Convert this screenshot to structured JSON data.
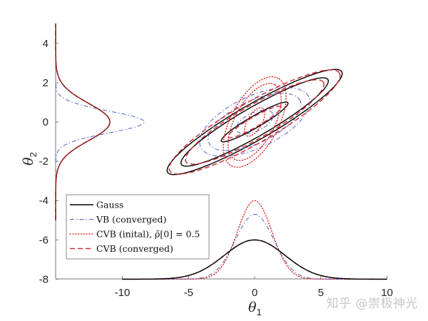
{
  "chart_data": {
    "type": "line",
    "title": "",
    "xlabel": "θ1",
    "ylabel": "θ2",
    "xlim": [
      -15.1,
      10
    ],
    "ylim": [
      -8,
      5
    ],
    "grid": false,
    "x_ticks": [
      -10,
      -5,
      0,
      5,
      10
    ],
    "x_tick_labels": [
      "-10",
      "-5",
      "0",
      "5",
      "10"
    ],
    "y_ticks": [
      4,
      2,
      0,
      -2,
      -4,
      -6,
      -8
    ],
    "y_tick_labels": [
      "4",
      "2",
      "0",
      "-2",
      "-4",
      "-6",
      "-8"
    ],
    "legend_position": "lower left",
    "legend": [
      {
        "label": "Gauss",
        "color": "#000000",
        "style": "solid"
      },
      {
        "label": "VB (converged)",
        "color": "#5560c8",
        "style": "dashdot"
      },
      {
        "label": "CVB (inital), ρ̃[0] = 0.5",
        "color": "#e02020",
        "style": "dotted"
      },
      {
        "label": "CVB (converged)",
        "color": "#d0303a",
        "style": "dashed"
      }
    ],
    "series": [
      {
        "name": "Gauss",
        "color": "#000000",
        "style": "solid",
        "contours": [
          {
            "cx": 0,
            "cy": 0,
            "a": 2.9,
            "b": 0.45,
            "angle_deg": 30
          },
          {
            "cx": 0,
            "cy": 0,
            "a": 6.4,
            "b": 1.1,
            "angle_deg": 30
          },
          {
            "cx": 0,
            "cy": 0,
            "a": 7.6,
            "b": 1.35,
            "angle_deg": 30
          }
        ],
        "marginal_theta1": {
          "mean": 0,
          "sd": 2.3,
          "peak_height": 2.0
        },
        "marginal_theta2": {
          "mean": 0,
          "sd": 0.95,
          "peak_height": 4.1
        }
      },
      {
        "name": "VB (converged)",
        "color": "#5560c8",
        "style": "dashdot",
        "contours": [
          {
            "cx": 0,
            "cy": 0,
            "a": 1.5,
            "b": 0.7,
            "angle_deg": 25
          },
          {
            "cx": 0,
            "cy": 0,
            "a": 3.8,
            "b": 1.6,
            "angle_deg": 25
          },
          {
            "cx": 0,
            "cy": 0,
            "a": 4.5,
            "b": 1.95,
            "angle_deg": 25
          }
        ],
        "marginal_theta1": {
          "mean": 0,
          "sd": 1.45,
          "peak_height": 3.3
        },
        "marginal_theta2": {
          "mean": 0,
          "sd": 0.55,
          "peak_height": 6.7
        }
      },
      {
        "name": "CVB (inital), ρ̃[0] = 0.5",
        "color": "#e02020",
        "style": "dotted",
        "contours": [
          {
            "cx": 0,
            "cy": 0,
            "a": 1.2,
            "b": 0.55,
            "angle_deg": 60
          },
          {
            "cx": 0,
            "cy": 0,
            "a": 3.2,
            "b": 1.5,
            "angle_deg": 62
          },
          {
            "cx": 0,
            "cy": 0,
            "a": 3.75,
            "b": 1.8,
            "angle_deg": 62
          }
        ],
        "marginal_theta1": {
          "mean": 0,
          "sd": 1.3,
          "peak_height": 4.0
        },
        "marginal_theta2": {
          "mean": 0,
          "sd": 0.95,
          "peak_height": 4.1
        }
      },
      {
        "name": "CVB (converged)",
        "color": "#d0303a",
        "style": "dashed",
        "contours": [
          {
            "cx": 0,
            "cy": 0,
            "a": 2.3,
            "b": 0.38,
            "angle_deg": 30
          },
          {
            "cx": 0,
            "cy": 0,
            "a": 6.0,
            "b": 1.25,
            "angle_deg": 30
          },
          {
            "cx": 0,
            "cy": 0,
            "a": 7.4,
            "b": 1.55,
            "angle_deg": 30
          }
        ],
        "marginal_theta1": {
          "mean": 0,
          "sd": 2.3,
          "peak_height": 2.0
        },
        "marginal_theta2": {
          "mean": 0,
          "sd": 0.95,
          "peak_height": 4.1
        }
      }
    ],
    "annotations": []
  },
  "watermark": "知乎 @崇极神光"
}
